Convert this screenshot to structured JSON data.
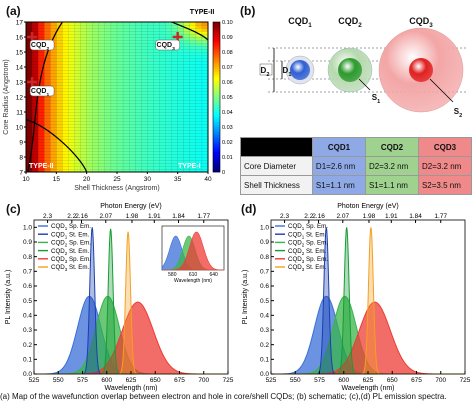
{
  "panel_labels": {
    "a": "(a)",
    "b": "(b)",
    "c": "(c)",
    "d": "(d)"
  },
  "panel_a": {
    "xlabel": "Shell Thickness (Angstrom)",
    "ylabel": "Core Radius (Angstrom)",
    "xticks": [
      "10",
      "15",
      "20",
      "25",
      "30",
      "35",
      "40"
    ],
    "yticks": [
      "7",
      "8",
      "9",
      "10",
      "11",
      "12",
      "13",
      "14",
      "15",
      "16",
      "17"
    ],
    "colorbar_ticks": [
      "0.10",
      "0.09",
      "0.08",
      "0.07",
      "0.06",
      "0.05",
      "0.04",
      "0.03",
      "0.02",
      "0.01",
      "0"
    ],
    "region_labels": {
      "type2_top": "TYPE-II",
      "type2_bottom": "TYPE-II",
      "type1": "TYPE-I"
    },
    "markers": [
      "CQD1",
      "CQD2",
      "CQD3"
    ]
  },
  "panel_b": {
    "titles": [
      "CQD1",
      "CQD2",
      "CQD3"
    ],
    "dim_labels": {
      "d1": "D1",
      "d2": "D2",
      "s1": "S1",
      "s2": "S2"
    },
    "table": {
      "header": [
        "",
        "CQD1",
        "CQD2",
        "CQD3"
      ],
      "rows": [
        {
          "label": "Core Diameter",
          "cells": [
            "D1=2.6 nm",
            "D2=3.2 nm",
            "D2=3.2 nm"
          ]
        },
        {
          "label": "Shell Thickness",
          "cells": [
            "S1=1.1 nm",
            "S1=1.1 nm",
            "S2=3.5 nm"
          ]
        }
      ]
    },
    "colors": {
      "cqd1": "#3a6fd8",
      "cqd2": "#3fae3f",
      "cqd3": "#e23a3a"
    }
  },
  "spectra_panels": [
    {
      "id": "c",
      "legend": [
        "CQD1 Sp. Em.",
        "CQD1 St. Em.",
        "CQD2 Sp. Em.",
        "CQD2 St. Em.",
        "CQD3 Sp. Em.",
        "CQD3 St. Em."
      ],
      "has_inset": true
    },
    {
      "id": "d",
      "legend": [
        "CQD1 Sp. Em.",
        "CQD1 St. Em.",
        "CQD2 Sp. Em.",
        "CQD2 St. Em.",
        "CQD3 Sp. Em.",
        "CQD3 St. Em."
      ],
      "has_inset": false
    }
  ],
  "spectra_axes": {
    "xlabel": "Wavelength (nm)",
    "ylabel": "PL Intensity (a.u.)",
    "toplabel": "Photon Energy (eV)",
    "xticks": [
      "525",
      "550",
      "575",
      "600",
      "625",
      "650",
      "675",
      "700",
      "725"
    ],
    "topticks": [
      "2.3",
      "2.2",
      "2.16",
      "2.07",
      "1.98",
      "1.91",
      "1.84",
      "1.77"
    ],
    "yticks": [
      "0.0",
      "0.1",
      "0.2",
      "0.3",
      "0.4",
      "0.5",
      "0.6",
      "0.7",
      "0.8",
      "0.9",
      "1.0"
    ],
    "inset_xlabel": "Wavelength (nm)",
    "inset_xticks": [
      "580",
      "610",
      "640"
    ]
  },
  "chart_data": [
    {
      "type": "heatmap",
      "xlabel": "Shell Thickness (Angstrom)",
      "ylabel": "Core Radius (Angstrom)",
      "xlim": [
        10,
        40
      ],
      "ylim": [
        7,
        17
      ],
      "colorbar": [
        0,
        0.1
      ],
      "markers": [
        {
          "name": "CQD1",
          "x": 11,
          "y": 13
        },
        {
          "name": "CQD2",
          "x": 11,
          "y": 16
        },
        {
          "name": "CQD3",
          "x": 35,
          "y": 16
        }
      ]
    },
    {
      "type": "area",
      "xlabel": "Wavelength (nm)",
      "ylabel": "PL Intensity (a.u.)",
      "xlim": [
        525,
        725
      ],
      "ylim": [
        0,
        1.05
      ],
      "series": [
        {
          "name": "CQD1 Sp. Em.",
          "kind": "broad",
          "center": 582,
          "width": 12,
          "height": 0.53,
          "color": "#3a6fd8"
        },
        {
          "name": "CQD1 St. Em.",
          "kind": "narrow",
          "center": 585,
          "width": 2.5,
          "height": 1.0,
          "color": "#1b3fb0"
        },
        {
          "name": "CQD2 Sp. Em.",
          "kind": "broad",
          "center": 601,
          "width": 12,
          "height": 0.53,
          "color": "#39b54a"
        },
        {
          "name": "CQD2 St. Em.",
          "kind": "narrow",
          "center": 604,
          "width": 2.5,
          "height": 0.99,
          "color": "#169c35"
        },
        {
          "name": "CQD3 Sp. Em.",
          "kind": "broad",
          "center": 632,
          "width": 16,
          "height": 0.49,
          "color": "#ee3b35"
        },
        {
          "name": "CQD3 St. Em.",
          "kind": "narrow",
          "center": 622,
          "width": 2.5,
          "height": 0.97,
          "color": "#f4a023"
        }
      ]
    },
    {
      "type": "area",
      "xlabel": "Wavelength (nm)",
      "ylabel": "PL Intensity (a.u.)",
      "xlim": [
        525,
        725
      ],
      "ylim": [
        0,
        1.05
      ],
      "series": [
        {
          "name": "CQD1 Sp. Em.",
          "kind": "broad",
          "center": 582,
          "width": 12,
          "height": 0.53,
          "color": "#3a6fd8"
        },
        {
          "name": "CQD1 St. Em.",
          "kind": "narrow",
          "center": 582,
          "width": 2.5,
          "height": 1.0,
          "color": "#1b3fb0"
        },
        {
          "name": "CQD2 Sp. Em.",
          "kind": "broad",
          "center": 601,
          "width": 12,
          "height": 0.53,
          "color": "#39b54a"
        },
        {
          "name": "CQD2 St. Em.",
          "kind": "narrow",
          "center": 603,
          "width": 2.5,
          "height": 1.0,
          "color": "#169c35"
        },
        {
          "name": "CQD3 Sp. Em.",
          "kind": "broad",
          "center": 632,
          "width": 16,
          "height": 0.49,
          "color": "#ee3b35"
        },
        {
          "name": "CQD3 St. Em.",
          "kind": "narrow",
          "center": 628,
          "width": 2.5,
          "height": 1.0,
          "color": "#f4a023"
        }
      ]
    }
  ],
  "caption": "(a) Map of the wavefunction overlap between electron and hole in core/shell CQDs; (b) schematic; (c),(d) PL emission spectra."
}
